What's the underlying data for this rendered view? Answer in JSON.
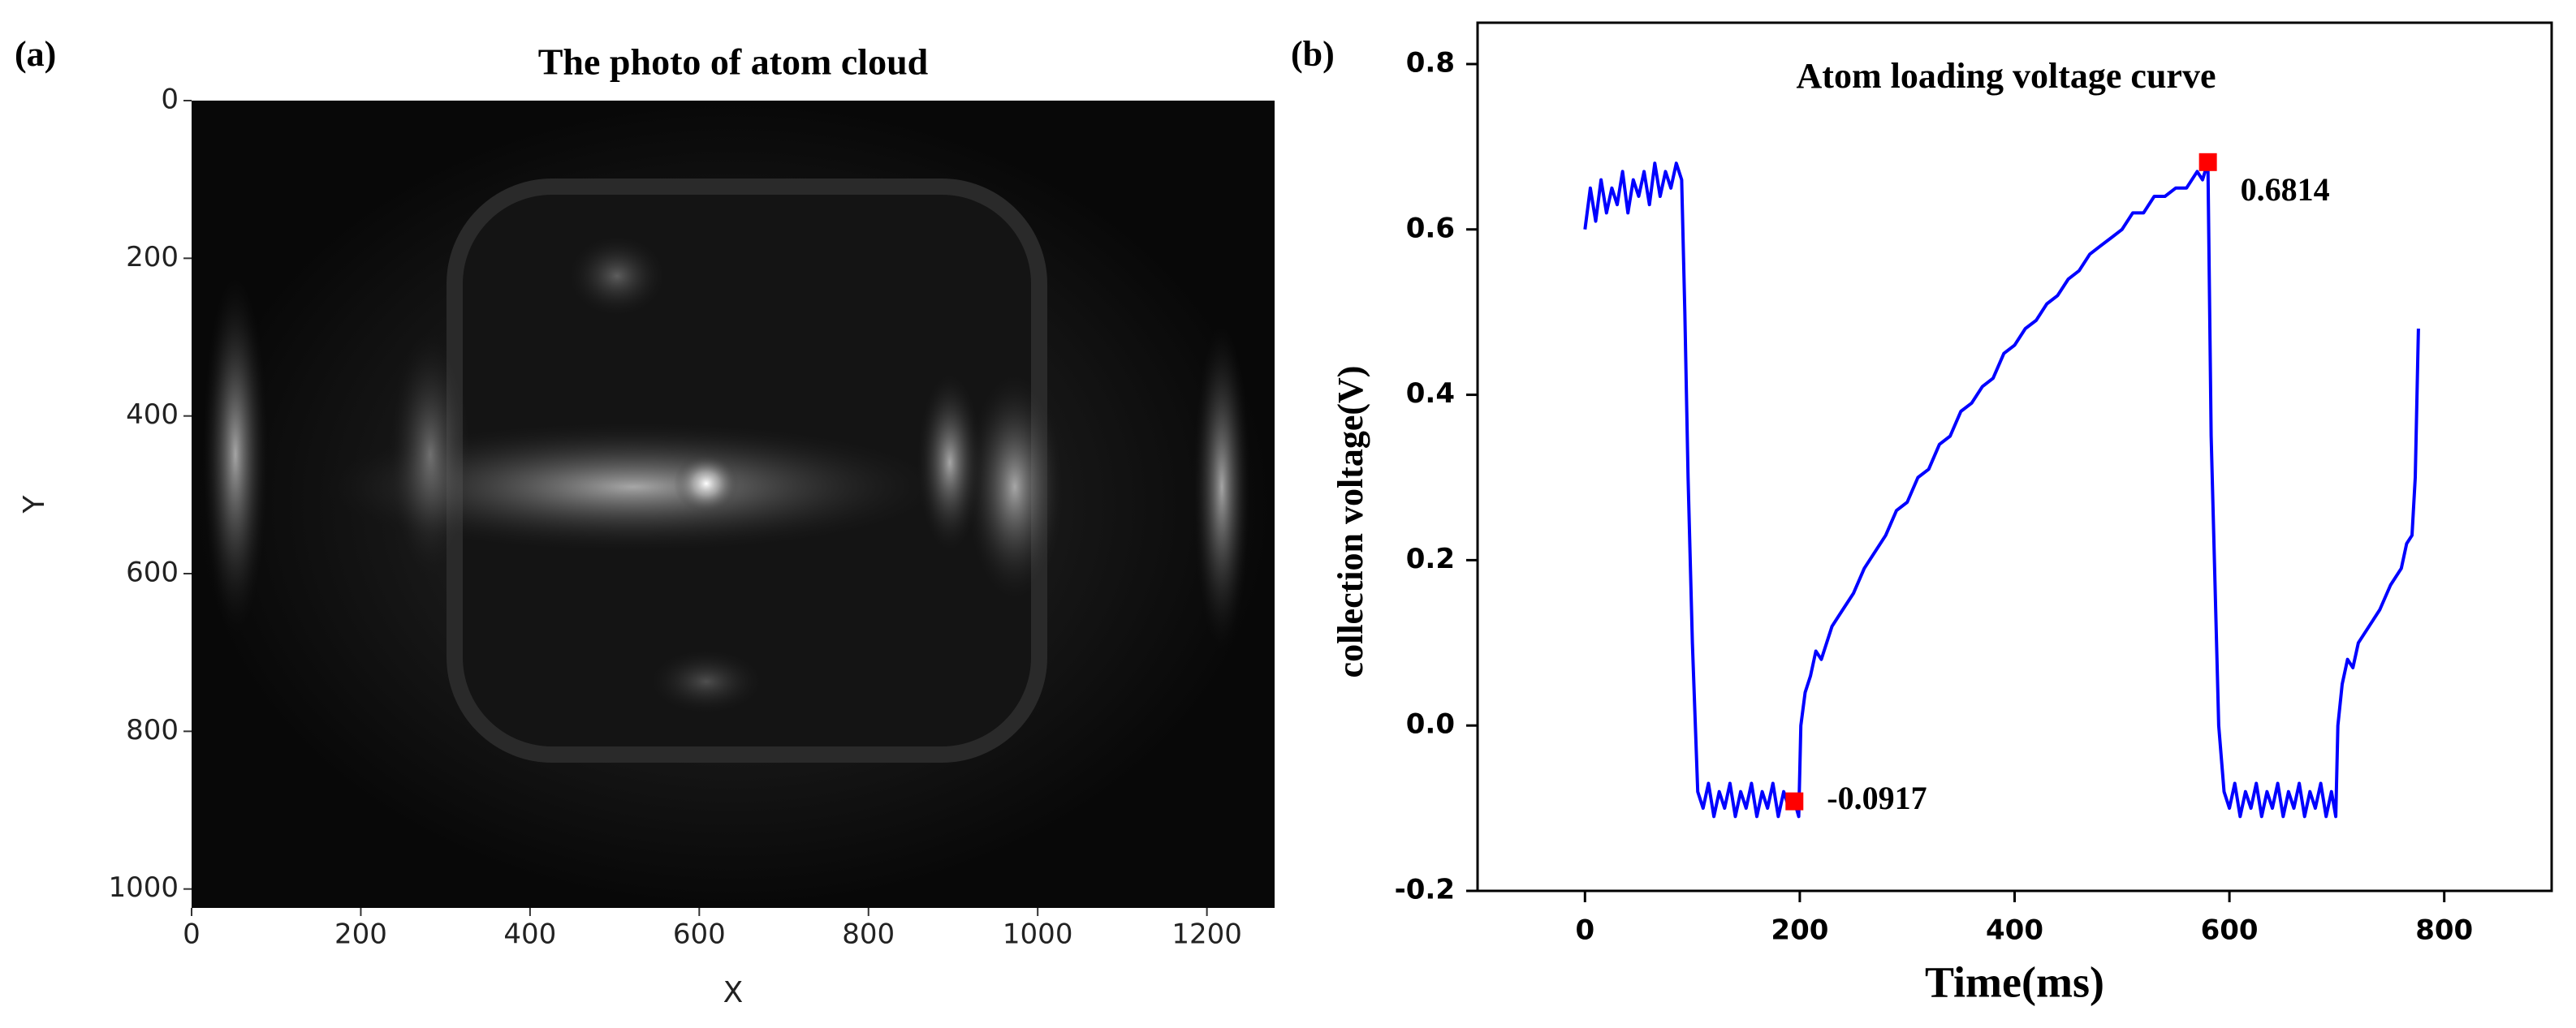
{
  "chart_data": [
    {
      "type": "image",
      "panel_label": "(a)",
      "title": "The photo of atom cloud",
      "xlabel": "X",
      "ylabel": "Y",
      "xlim": [
        0,
        1280
      ],
      "ylim": [
        1024,
        0
      ],
      "xticks": [
        0,
        200,
        400,
        600,
        800,
        1000,
        1200
      ],
      "yticks": [
        0,
        200,
        400,
        600,
        800,
        1000
      ]
    },
    {
      "type": "line",
      "panel_label": "(b)",
      "title": "Atom loading voltage curve",
      "xlabel": "Time(ms)",
      "ylabel": "collection voltage(V)",
      "xlim": [
        -100,
        900
      ],
      "ylim": [
        -0.2,
        0.85
      ],
      "xticks": [
        0,
        200,
        400,
        600,
        800
      ],
      "yticks": [
        -0.2,
        {
          "value": 0,
          "label": "0.0"
        },
        0.2,
        0.4,
        0.6,
        0.8
      ],
      "series": [
        {
          "color": "#0000ff",
          "x": [
            0,
            5,
            10,
            15,
            20,
            25,
            30,
            35,
            40,
            45,
            50,
            55,
            60,
            65,
            70,
            75,
            80,
            85,
            90,
            93,
            96,
            100,
            105,
            110,
            115,
            120,
            125,
            130,
            135,
            140,
            145,
            150,
            155,
            160,
            165,
            170,
            175,
            180,
            185,
            190,
            195,
            199,
            201,
            205,
            210,
            215,
            220,
            230,
            240,
            250,
            260,
            270,
            280,
            290,
            300,
            310,
            320,
            330,
            340,
            350,
            360,
            370,
            380,
            390,
            400,
            410,
            420,
            430,
            440,
            450,
            460,
            470,
            480,
            490,
            500,
            510,
            520,
            530,
            540,
            550,
            560,
            570,
            575,
            580,
            583,
            586,
            590,
            595,
            600,
            605,
            610,
            615,
            620,
            625,
            630,
            635,
            640,
            645,
            650,
            655,
            660,
            665,
            670,
            675,
            680,
            685,
            690,
            695,
            699,
            701,
            705,
            710,
            715,
            720,
            730,
            740,
            750,
            760,
            765,
            770,
            773,
            776
          ],
          "values": [
            0.6,
            0.65,
            0.61,
            0.66,
            0.62,
            0.65,
            0.63,
            0.67,
            0.62,
            0.66,
            0.64,
            0.67,
            0.63,
            0.68,
            0.64,
            0.67,
            0.65,
            0.68,
            0.66,
            0.5,
            0.3,
            0.1,
            -0.08,
            -0.1,
            -0.07,
            -0.11,
            -0.08,
            -0.1,
            -0.07,
            -0.11,
            -0.08,
            -0.1,
            -0.07,
            -0.11,
            -0.08,
            -0.1,
            -0.07,
            -0.11,
            -0.08,
            -0.1,
            -0.0917,
            -0.11,
            0.0,
            0.04,
            0.06,
            0.09,
            0.08,
            0.12,
            0.14,
            0.16,
            0.19,
            0.21,
            0.23,
            0.26,
            0.27,
            0.3,
            0.31,
            0.34,
            0.35,
            0.38,
            0.39,
            0.41,
            0.42,
            0.45,
            0.46,
            0.48,
            0.49,
            0.51,
            0.52,
            0.54,
            0.55,
            0.57,
            0.58,
            0.59,
            0.6,
            0.62,
            0.62,
            0.64,
            0.64,
            0.65,
            0.65,
            0.67,
            0.66,
            0.6814,
            0.35,
            0.2,
            0.0,
            -0.08,
            -0.1,
            -0.07,
            -0.11,
            -0.08,
            -0.1,
            -0.07,
            -0.11,
            -0.08,
            -0.1,
            -0.07,
            -0.11,
            -0.08,
            -0.1,
            -0.07,
            -0.11,
            -0.08,
            -0.1,
            -0.07,
            -0.11,
            -0.08,
            -0.11,
            0.0,
            0.05,
            0.08,
            0.07,
            0.1,
            0.12,
            0.14,
            0.17,
            0.19,
            0.22,
            0.23,
            0.3,
            0.48
          ]
        }
      ],
      "points": {
        "color": "#ff0000",
        "x": [
          195,
          580
        ],
        "values": [
          -0.0917,
          0.6814
        ]
      }
    }
  ]
}
